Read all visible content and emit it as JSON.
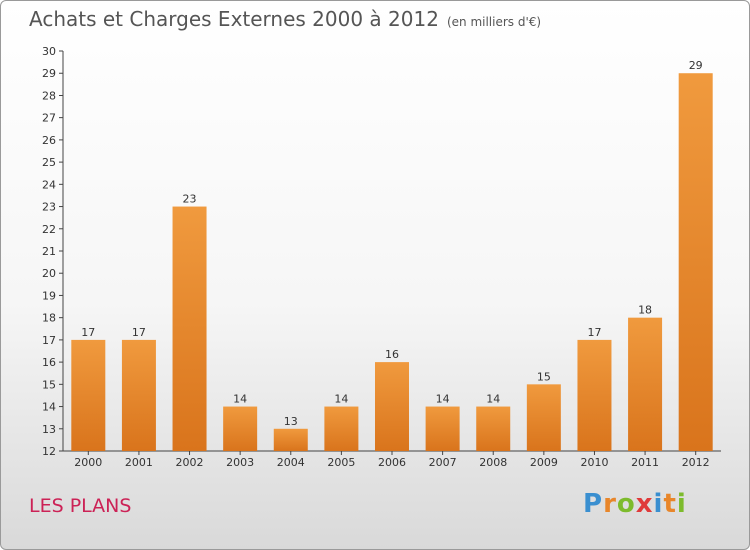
{
  "chart_data": {
    "type": "bar",
    "title": "Achats et Charges Externes 2000 à 2012",
    "subtitle": "(en milliers d'€)",
    "categories": [
      "2000",
      "2001",
      "2002",
      "2003",
      "2004",
      "2005",
      "2006",
      "2007",
      "2008",
      "2009",
      "2010",
      "2011",
      "2012"
    ],
    "values": [
      17,
      17,
      23,
      14,
      13,
      14,
      16,
      14,
      14,
      15,
      17,
      18,
      29
    ],
    "ylim": [
      12,
      30
    ],
    "yticks": [
      12,
      13,
      14,
      15,
      16,
      17,
      18,
      19,
      20,
      21,
      22,
      23,
      24,
      25,
      26,
      27,
      28,
      29,
      30
    ],
    "grid": false,
    "legend": "none",
    "bar_color": "#f09a3e",
    "bar_color_dark": "#d9741c"
  },
  "town_name": "LES PLANS",
  "logo": {
    "letters": [
      "P",
      "r",
      "o",
      "x",
      "i",
      "t",
      "i"
    ],
    "colors": [
      "#3a8fd0",
      "#e8862a",
      "#7dbb2c",
      "#e03a3a",
      "#3a8fd0",
      "#e8862a",
      "#7dbb2c"
    ]
  }
}
